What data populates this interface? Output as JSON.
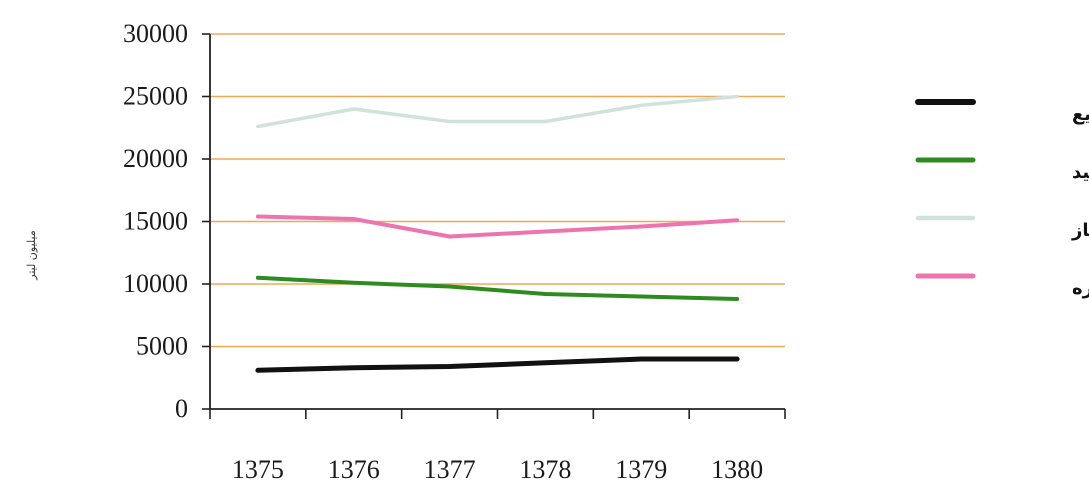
{
  "chart_data": {
    "type": "line",
    "ylabel": "میلیون لیتر",
    "xlabel": "",
    "title": "",
    "categories": [
      "1375",
      "1376",
      "1377",
      "1378",
      "1379",
      "1380"
    ],
    "ylim": [
      0,
      30000
    ],
    "yticks": [
      0,
      5000,
      10000,
      15000,
      20000,
      25000,
      30000
    ],
    "grid": true,
    "legend_position": "right",
    "gridline_color": "#f0a857",
    "series": [
      {
        "name": "گاز مایع",
        "color": "#111111",
        "values": [
          3100,
          3300,
          3400,
          3700,
          4000,
          4000
        ]
      },
      {
        "name": "نفت سفید",
        "color": "#2e8b1f",
        "values": [
          10500,
          10100,
          9800,
          9200,
          9000,
          8800
        ]
      },
      {
        "name": "نفت گاز",
        "color": "#cfe3dc",
        "values": [
          22600,
          24000,
          23000,
          23000,
          24300,
          25000
        ]
      },
      {
        "name": "نفت کوره",
        "color": "#ee74b0",
        "values": [
          15400,
          15200,
          13800,
          14200,
          14600,
          15100
        ]
      }
    ]
  }
}
